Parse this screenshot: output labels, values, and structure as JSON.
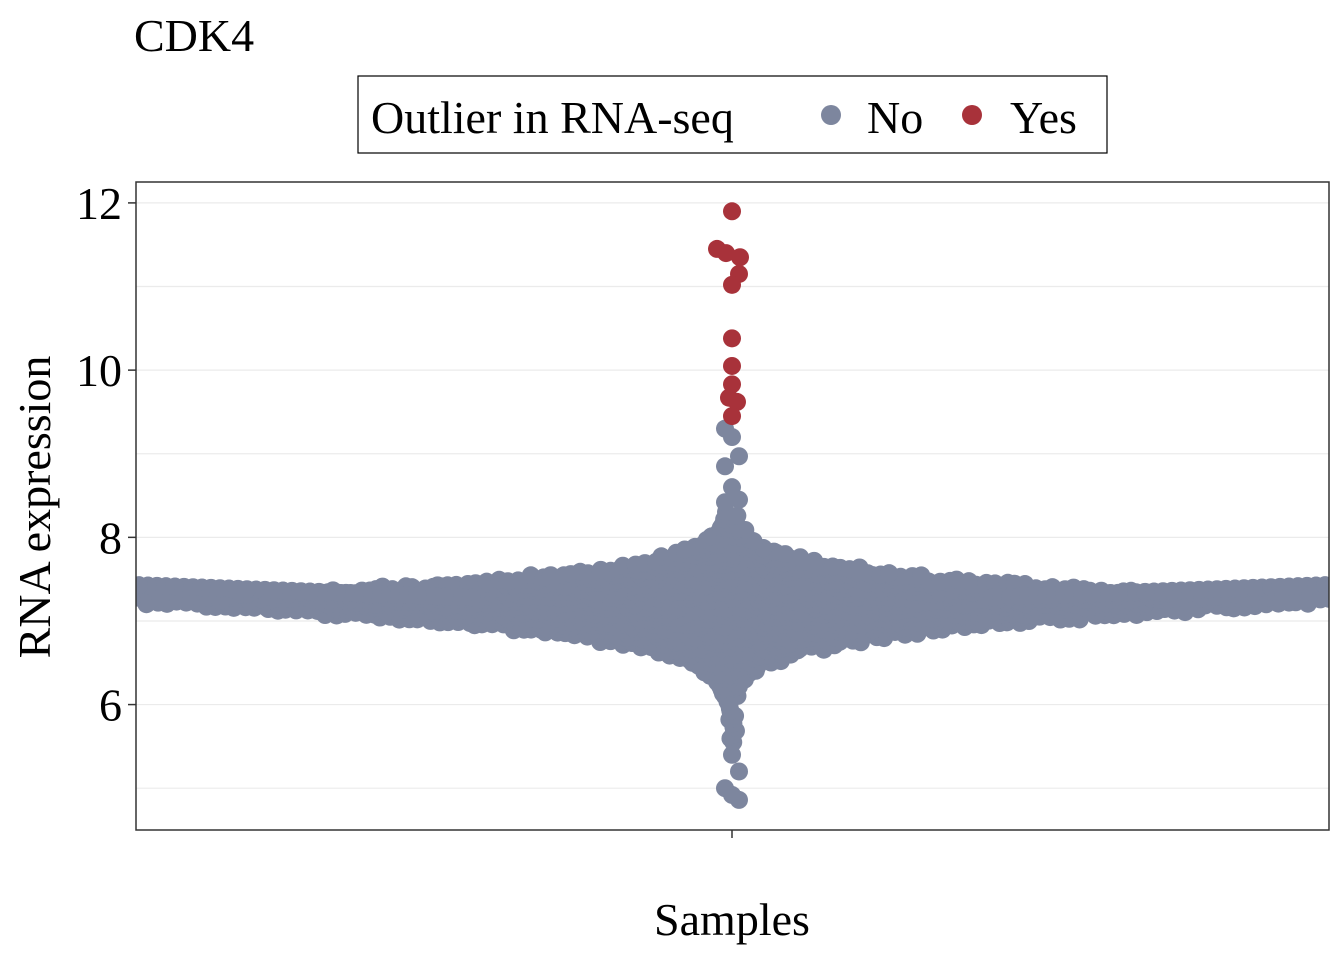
{
  "chart_data": {
    "type": "scatter",
    "subtype": "beeswarm",
    "title": "CDK4",
    "xlabel": "Samples",
    "ylabel": "RNA expression",
    "ylim": [
      4.5,
      12.25
    ],
    "yticks": [
      6,
      8,
      10,
      12
    ],
    "grid": true,
    "legend": {
      "title": "Outlier in RNA-seq",
      "placement": "top",
      "entries": [
        {
          "label": "No",
          "color": "#7d869e"
        },
        {
          "label": "Yes",
          "color": "#a8323a"
        }
      ]
    },
    "series": [
      {
        "name": "No",
        "color": "#7d869e",
        "distribution_note": "Thousands of samples; density peaks near 7.2. Explicit extreme points listed.",
        "extreme_values": [
          9.3,
          9.2,
          8.97,
          8.85,
          8.6,
          8.45,
          8.42,
          5.4,
          5.2,
          5.0,
          4.92,
          4.86
        ]
      },
      {
        "name": "Yes",
        "color": "#a8323a",
        "values": [
          11.9,
          11.45,
          11.4,
          11.35,
          11.15,
          11.02,
          10.38,
          10.05,
          9.83,
          9.67,
          9.62,
          9.45
        ]
      }
    ]
  }
}
